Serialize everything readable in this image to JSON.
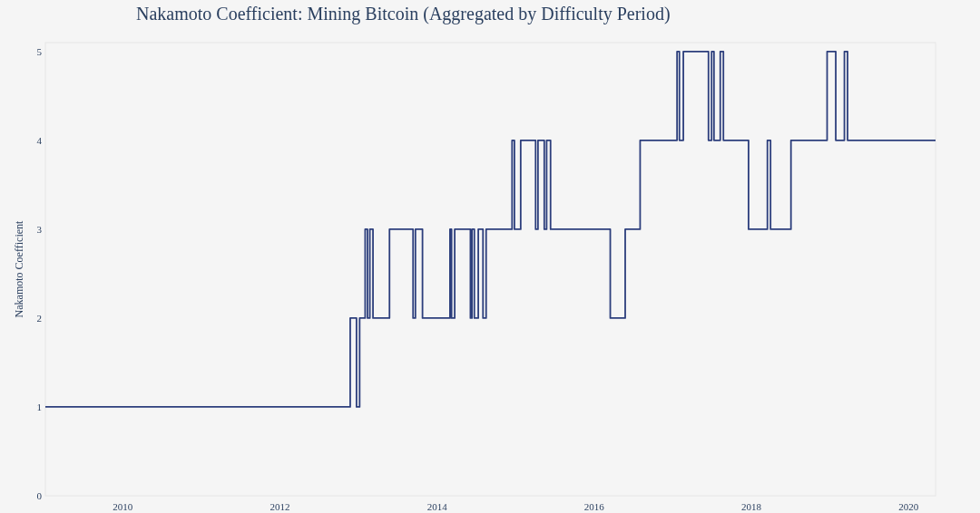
{
  "chart_data": {
    "type": "step",
    "title": "Nakamoto Coefficient: Mining Bitcoin (Aggregated by Difficulty Period)",
    "ylabel": "Nakamoto Coefficient",
    "x": [
      2009.02,
      2012.9,
      2012.98,
      2013.02,
      2013.09,
      2013.12,
      2013.15,
      2013.19,
      2013.4,
      2013.7,
      2013.73,
      2013.82,
      2014.17,
      2014.19,
      2014.23,
      2014.43,
      2014.45,
      2014.48,
      2014.53,
      2014.59,
      2014.63,
      2014.96,
      2014.99,
      2015.07,
      2015.26,
      2015.29,
      2015.37,
      2015.4,
      2015.45,
      2016.21,
      2016.4,
      2016.59,
      2017.06,
      2017.09,
      2017.14,
      2017.46,
      2017.5,
      2017.53,
      2017.61,
      2017.65,
      2017.97,
      2018.21,
      2018.25,
      2018.51,
      2018.97,
      2019.08,
      2019.19,
      2019.23,
      2020.35
    ],
    "series": [
      {
        "color": "#2c3e7c",
        "values": [
          1,
          2,
          1,
          2,
          3,
          2,
          3,
          2,
          3,
          2,
          3,
          2,
          3,
          2,
          3,
          2,
          3,
          2,
          3,
          2,
          3,
          4,
          3,
          4,
          3,
          4,
          3,
          4,
          3,
          2,
          3,
          4,
          5,
          4,
          5,
          4,
          5,
          4,
          5,
          4,
          3,
          4,
          3,
          4,
          5,
          4,
          5,
          4,
          4
        ]
      }
    ],
    "xlim": [
      2009.02,
      2020.35
    ],
    "xticks": [
      2010,
      2012,
      2014,
      2016,
      2018,
      2020
    ],
    "ylim": [
      0,
      5.1
    ],
    "yticks": [
      0,
      1,
      2,
      3,
      4,
      5
    ],
    "grid": false
  }
}
